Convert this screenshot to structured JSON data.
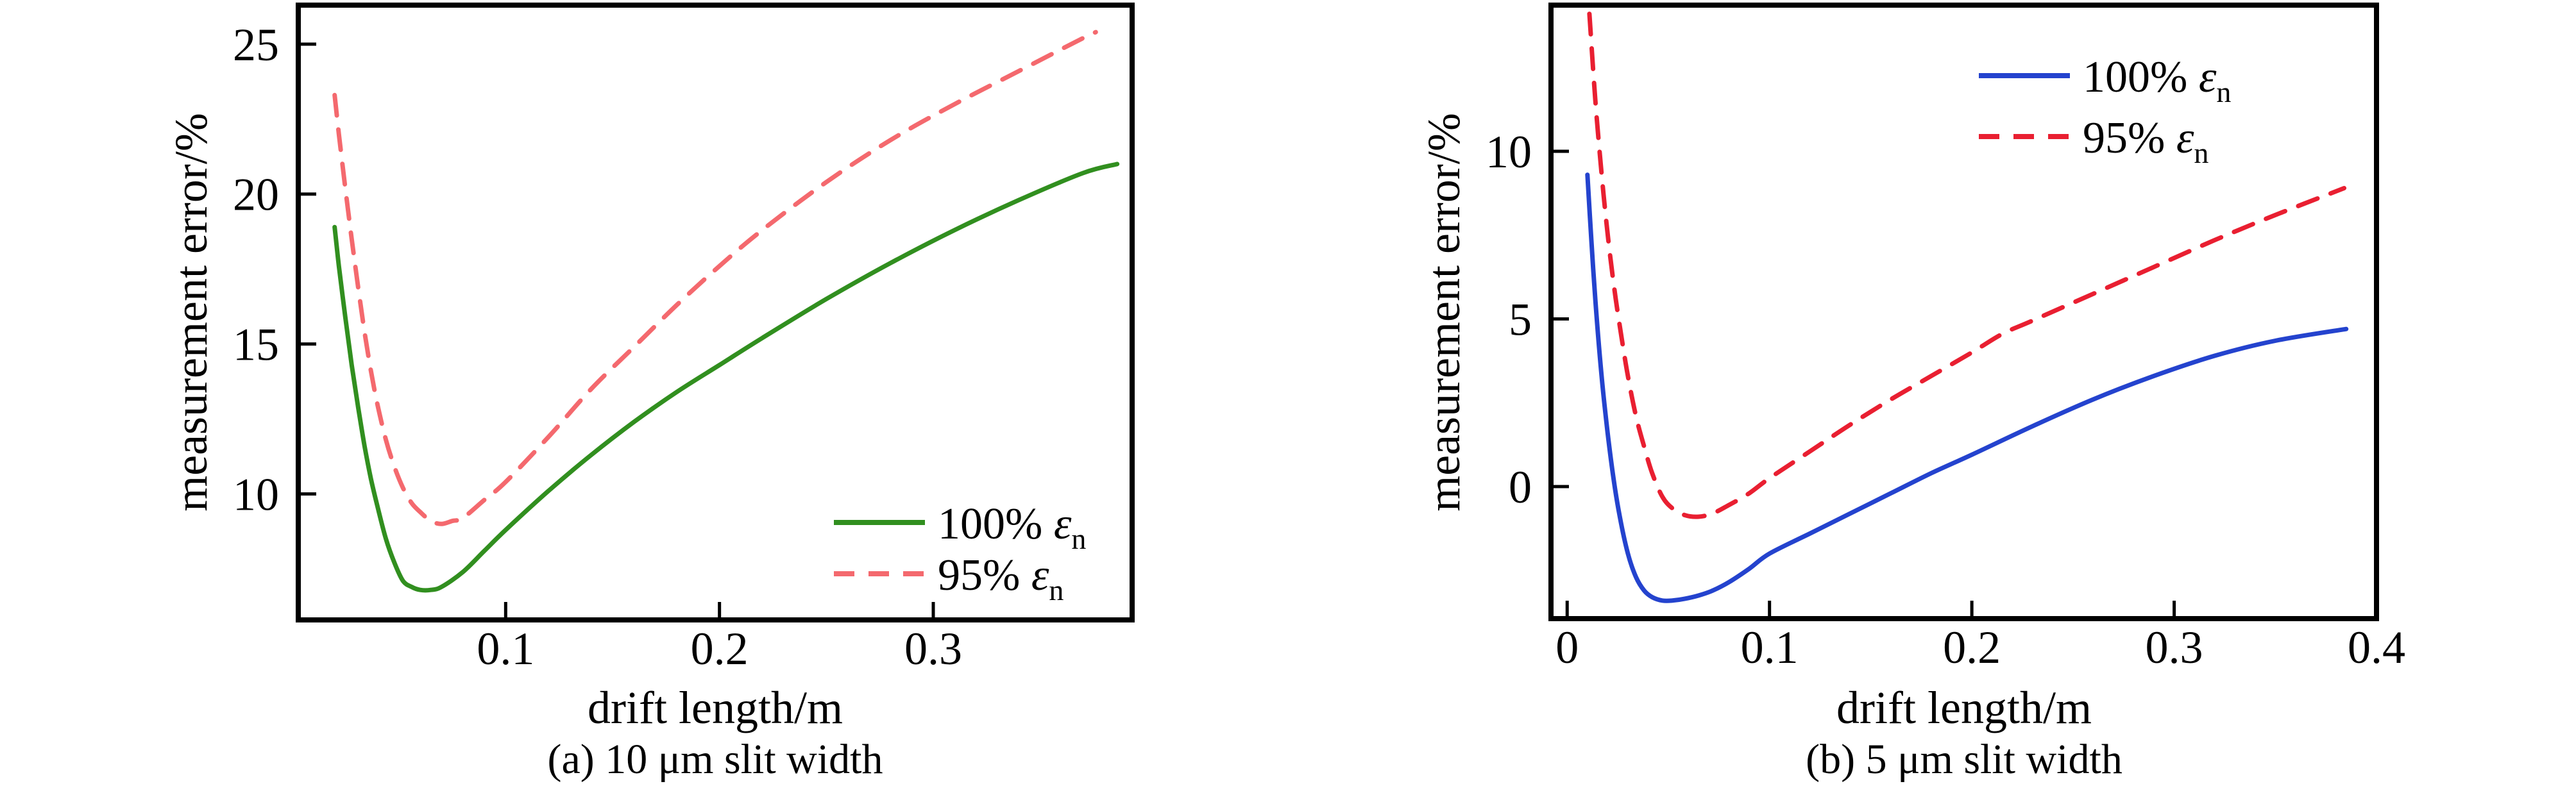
{
  "figure": {
    "background": "#ffffff"
  },
  "chart_data": [
    {
      "id": "a",
      "type": "line",
      "title": "(a) 10 μm slit width",
      "xlabel": "drift length/m",
      "ylabel": "measurement error/%",
      "xlim": [
        0.003,
        0.393
      ],
      "ylim": [
        5.8,
        26.3
      ],
      "xticks": [
        0.1,
        0.2,
        0.3
      ],
      "xtick_labels": [
        "0.1",
        "0.2",
        "0.3"
      ],
      "yticks": [
        10,
        15,
        20,
        25
      ],
      "ytick_labels": [
        "10",
        "15",
        "20",
        "25"
      ],
      "grid": false,
      "legend_position": "lower right",
      "series": [
        {
          "name": "100% εn",
          "label_prefix": "100% ",
          "label_symbol": "ε",
          "label_sub": "n",
          "color": "#318f1f",
          "style": "solid",
          "x": [
            0.02,
            0.022,
            0.025,
            0.028,
            0.031,
            0.034,
            0.037,
            0.04,
            0.044,
            0.048,
            0.052,
            0.056,
            0.06,
            0.065,
            0.07,
            0.08,
            0.09,
            0.1,
            0.12,
            0.14,
            0.16,
            0.18,
            0.2,
            0.22,
            0.25,
            0.28,
            0.31,
            0.34,
            0.37,
            0.386
          ],
          "y": [
            18.9,
            17.6,
            15.9,
            14.3,
            12.9,
            11.6,
            10.5,
            9.6,
            8.5,
            7.7,
            7.1,
            6.9,
            6.8,
            6.8,
            6.9,
            7.4,
            8.1,
            8.8,
            10.1,
            11.3,
            12.4,
            13.4,
            14.3,
            15.2,
            16.5,
            17.7,
            18.8,
            19.8,
            20.7,
            21.0
          ]
        },
        {
          "name": "95% εn",
          "label_prefix": "95% ",
          "label_symbol": "ε",
          "label_sub": "n",
          "color": "#f4696e",
          "style": "dashed",
          "x": [
            0.02,
            0.022,
            0.025,
            0.028,
            0.031,
            0.034,
            0.037,
            0.04,
            0.044,
            0.048,
            0.052,
            0.056,
            0.06,
            0.065,
            0.07,
            0.075,
            0.08,
            0.09,
            0.1,
            0.12,
            0.14,
            0.16,
            0.18,
            0.2,
            0.22,
            0.25,
            0.28,
            0.31,
            0.34,
            0.37,
            0.376
          ],
          "y": [
            23.3,
            22.0,
            20.2,
            18.5,
            16.9,
            15.4,
            14.1,
            13.0,
            11.8,
            10.9,
            10.2,
            9.7,
            9.4,
            9.1,
            9.0,
            9.1,
            9.2,
            9.8,
            10.4,
            11.9,
            13.5,
            14.9,
            16.3,
            17.6,
            18.8,
            20.4,
            21.8,
            23.0,
            24.1,
            25.2,
            25.4
          ]
        }
      ]
    },
    {
      "id": "b",
      "type": "line",
      "title": "(b) 5 μm slit width",
      "xlabel": "drift length/m",
      "ylabel": "measurement error/%",
      "xlim": [
        -0.008,
        0.4
      ],
      "ylim": [
        -3.94,
        14.36
      ],
      "xticks": [
        0,
        0.1,
        0.2,
        0.3,
        0.4
      ],
      "xtick_labels": [
        "0",
        "0.1",
        "0.2",
        "0.3",
        "0.4"
      ],
      "yticks": [
        0,
        5,
        10
      ],
      "ytick_labels": [
        "0",
        "5",
        "10"
      ],
      "grid": false,
      "legend_position": "upper right",
      "series": [
        {
          "name": "100% εn",
          "label_prefix": "100% ",
          "label_symbol": "ε",
          "label_sub": "n",
          "color": "#2443ce",
          "style": "solid",
          "x": [
            0.01,
            0.012,
            0.014,
            0.017,
            0.02,
            0.023,
            0.026,
            0.03,
            0.034,
            0.038,
            0.042,
            0.047,
            0.052,
            0.058,
            0.065,
            0.072,
            0.08,
            0.09,
            0.1,
            0.12,
            0.14,
            0.16,
            0.18,
            0.2,
            0.23,
            0.26,
            0.29,
            0.32,
            0.35,
            0.385
          ],
          "y": [
            9.3,
            7.3,
            5.5,
            3.3,
            1.6,
            0.2,
            -0.9,
            -2.0,
            -2.7,
            -3.1,
            -3.3,
            -3.4,
            -3.4,
            -3.35,
            -3.25,
            -3.1,
            -2.85,
            -2.45,
            -2.0,
            -1.4,
            -0.8,
            -0.2,
            0.4,
            0.95,
            1.8,
            2.6,
            3.3,
            3.9,
            4.35,
            4.7
          ]
        },
        {
          "name": "95% εn",
          "label_prefix": "95% ",
          "label_symbol": "ε",
          "label_sub": "n",
          "color": "#e91f31",
          "style": "dashed",
          "x": [
            0.011,
            0.013,
            0.015,
            0.018,
            0.021,
            0.024,
            0.027,
            0.03,
            0.034,
            0.038,
            0.042,
            0.047,
            0.052,
            0.058,
            0.065,
            0.072,
            0.08,
            0.09,
            0.1,
            0.12,
            0.14,
            0.16,
            0.18,
            0.2,
            0.215,
            0.23,
            0.26,
            0.29,
            0.32,
            0.35,
            0.384
          ],
          "y": [
            14.1,
            12.3,
            10.7,
            8.7,
            7.0,
            5.6,
            4.4,
            3.3,
            2.1,
            1.2,
            0.4,
            -0.3,
            -0.65,
            -0.85,
            -0.9,
            -0.8,
            -0.55,
            -0.2,
            0.25,
            1.05,
            1.85,
            2.6,
            3.3,
            4.0,
            4.55,
            4.95,
            5.75,
            6.55,
            7.35,
            8.1,
            8.9
          ]
        }
      ]
    }
  ]
}
